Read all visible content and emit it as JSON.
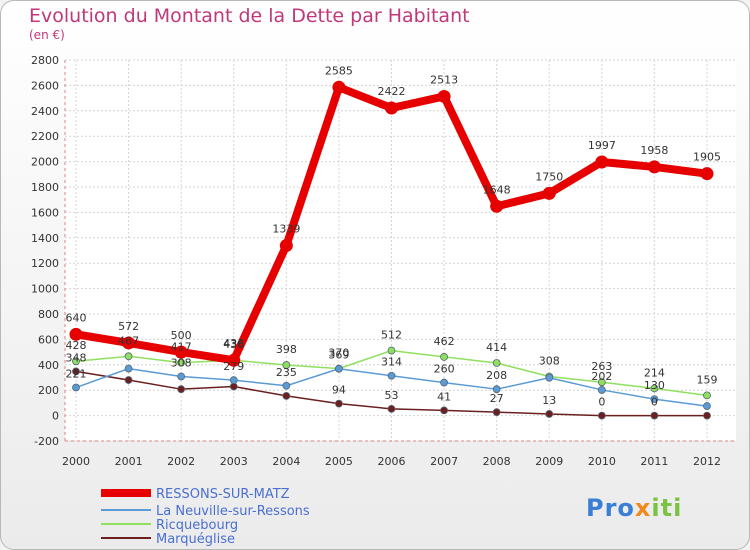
{
  "chart_data": {
    "type": "line",
    "title": "Evolution du Montant de la Dette par Habitant",
    "subtitle": "(en €)",
    "x": [
      "2000",
      "2001",
      "2002",
      "2003",
      "2004",
      "2005",
      "2006",
      "2007",
      "2008",
      "2009",
      "2010",
      "2011",
      "2012"
    ],
    "ylim": [
      -200,
      2800
    ],
    "yticks": [
      -200,
      0,
      200,
      400,
      600,
      800,
      1000,
      1200,
      1400,
      1600,
      1800,
      2000,
      2200,
      2400,
      2600,
      2800
    ],
    "grid": true,
    "legend_position": "bottom-left",
    "series": [
      {
        "name": "RESSONS-SUR-MATZ",
        "color": "#e60000",
        "values": [
          640,
          572,
          500,
          436,
          1339,
          2585,
          2422,
          2513,
          1648,
          1750,
          1997,
          1958,
          1905
        ],
        "labels": [
          "640",
          "572",
          "500",
          "436",
          "1339",
          "2585",
          "2422",
          "2513",
          "1648",
          "1750",
          "1997",
          "1958",
          "1905"
        ]
      },
      {
        "name": "La Neuville-sur-Ressons",
        "color": "#5b9bd5",
        "values": [
          221,
          370,
          308,
          279,
          235,
          369,
          314,
          260,
          208,
          298,
          202,
          130,
          75
        ],
        "labels": [
          "221",
          "",
          "308",
          "279",
          "235",
          "369",
          "314",
          "260",
          "208",
          "",
          "202",
          "130",
          ""
        ]
      },
      {
        "name": "Ricquebourg",
        "color": "#90e060",
        "values": [
          428,
          467,
          417,
          436,
          398,
          370,
          512,
          462,
          414,
          308,
          263,
          214,
          159
        ],
        "labels": [
          "428",
          "467",
          "417",
          "436",
          "398",
          "370",
          "512",
          "462",
          "414",
          "308",
          "263",
          "214",
          "159"
        ]
      },
      {
        "name": "Marquéglise",
        "color": "#6b1f1f",
        "values": [
          348,
          280,
          208,
          229,
          155,
          94,
          53,
          41,
          27,
          13,
          0,
          0,
          0
        ],
        "labels": [
          "348",
          "",
          "",
          "",
          "",
          "94",
          "53",
          "41",
          "27",
          "13",
          "0",
          "0",
          ""
        ]
      }
    ]
  },
  "logo": {
    "part1": "Pro",
    "part2": "x",
    "part3": "iti"
  }
}
